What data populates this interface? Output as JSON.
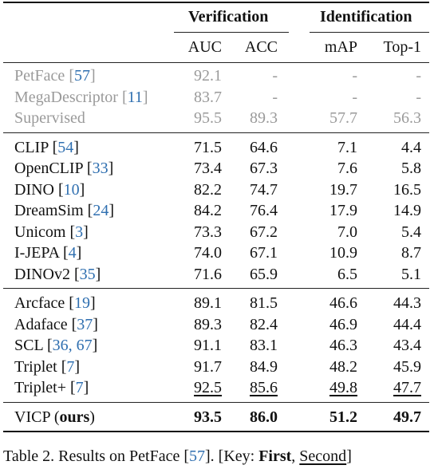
{
  "header": {
    "group1": "Verification",
    "group2": "Identification",
    "cols": [
      "AUC",
      "ACC",
      "mAP",
      "Top-1"
    ]
  },
  "groups": [
    {
      "style": "gray",
      "rows": [
        {
          "method": "PetFace",
          "ref": "57",
          "vals": [
            "92.1",
            "-",
            "-",
            "-"
          ],
          "fmt": [
            "",
            "",
            "",
            ""
          ]
        },
        {
          "method": "MegaDescriptor",
          "ref": "11",
          "vals": [
            "83.7",
            "-",
            "-",
            "-"
          ],
          "fmt": [
            "",
            "",
            "",
            ""
          ]
        },
        {
          "method": "Supervised",
          "ref": "",
          "vals": [
            "95.5",
            "89.3",
            "57.7",
            "56.3"
          ],
          "fmt": [
            "",
            "",
            "",
            ""
          ]
        }
      ]
    },
    {
      "style": "",
      "rows": [
        {
          "method": "CLIP",
          "ref": "54",
          "vals": [
            "71.5",
            "64.6",
            "7.1",
            "4.4"
          ],
          "fmt": [
            "",
            "",
            "",
            ""
          ]
        },
        {
          "method": "OpenCLIP",
          "ref": "33",
          "vals": [
            "73.4",
            "67.3",
            "7.6",
            "5.8"
          ],
          "fmt": [
            "",
            "",
            "",
            ""
          ]
        },
        {
          "method": "DINO",
          "ref": "10",
          "vals": [
            "82.2",
            "74.7",
            "19.7",
            "16.5"
          ],
          "fmt": [
            "",
            "",
            "",
            ""
          ]
        },
        {
          "method": "DreamSim",
          "ref": "24",
          "vals": [
            "84.2",
            "76.4",
            "17.9",
            "14.9"
          ],
          "fmt": [
            "",
            "",
            "",
            ""
          ]
        },
        {
          "method": "Unicom",
          "ref": "3",
          "vals": [
            "73.3",
            "67.2",
            "7.0",
            "5.4"
          ],
          "fmt": [
            "",
            "",
            "",
            ""
          ]
        },
        {
          "method": "I-JEPA",
          "ref": "4",
          "vals": [
            "74.0",
            "67.1",
            "10.9",
            "8.7"
          ],
          "fmt": [
            "",
            "",
            "",
            ""
          ]
        },
        {
          "method": "DINOv2",
          "ref": "35",
          "vals": [
            "71.6",
            "65.9",
            "6.5",
            "5.1"
          ],
          "fmt": [
            "",
            "",
            "",
            ""
          ]
        }
      ]
    },
    {
      "style": "",
      "rows": [
        {
          "method": "Arcface",
          "ref": "19",
          "vals": [
            "89.1",
            "81.5",
            "46.6",
            "44.3"
          ],
          "fmt": [
            "",
            "",
            "",
            ""
          ]
        },
        {
          "method": "Adaface",
          "ref": "37",
          "vals": [
            "89.3",
            "82.4",
            "46.9",
            "44.4"
          ],
          "fmt": [
            "",
            "",
            "",
            ""
          ]
        },
        {
          "method": "SCL",
          "ref": "36, 67",
          "vals": [
            "91.1",
            "83.1",
            "46.3",
            "43.4"
          ],
          "fmt": [
            "",
            "",
            "",
            ""
          ]
        },
        {
          "method": "Triplet",
          "ref": "7",
          "vals": [
            "91.7",
            "84.9",
            "48.2",
            "45.9"
          ],
          "fmt": [
            "",
            "",
            "",
            ""
          ]
        },
        {
          "method": "Triplet+",
          "ref": "7",
          "vals": [
            "92.5",
            "85.6",
            "49.8",
            "47.7"
          ],
          "fmt": [
            "u",
            "u",
            "u",
            "u"
          ]
        }
      ]
    },
    {
      "style": "",
      "rows": [
        {
          "method": "VICP",
          "suffix": "ours",
          "ref": "",
          "vals": [
            "93.5",
            "86.0",
            "51.2",
            "49.7"
          ],
          "fmt": [
            "b",
            "b",
            "b",
            "b"
          ]
        }
      ]
    }
  ],
  "caption": {
    "prefix": "Table 2. Results on PetFace [",
    "ref": "57",
    "mid": "]. [Key: ",
    "first": "First",
    "sep": ", ",
    "second": "Second",
    "end": "]"
  }
}
